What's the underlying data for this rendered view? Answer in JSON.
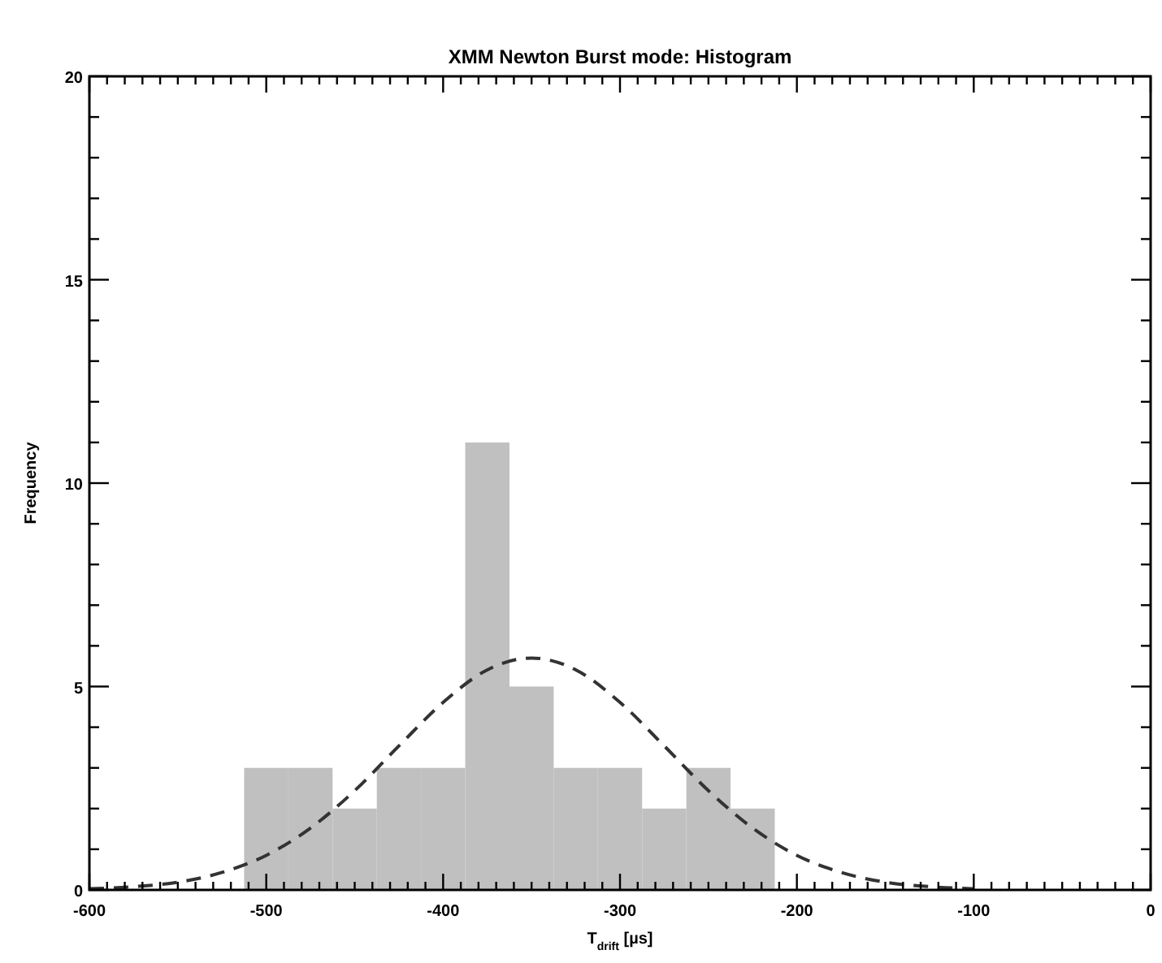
{
  "chart_data": {
    "type": "histogram",
    "title": "XMM Newton Burst mode: Histogram",
    "xlabel": "T$_{drift}$ [µs]",
    "ylabel": "Frequency",
    "xlim": [
      -600,
      0
    ],
    "ylim": [
      0,
      20
    ],
    "xticks": [
      -600,
      {
        "value": -590,
        "label": null
      },
      {
        "value": -580,
        "label": null
      },
      {
        "value": -570,
        "label": null
      },
      {
        "value": -560,
        "label": null
      },
      {
        "value": -550,
        "label": null
      },
      {
        "value": -540,
        "label": null
      },
      {
        "value": -530,
        "label": null
      },
      {
        "value": -520,
        "label": null
      },
      {
        "value": -510,
        "label": null
      },
      -500,
      {
        "value": -490,
        "label": null
      },
      {
        "value": -480,
        "label": null
      },
      {
        "value": -470,
        "label": null
      },
      {
        "value": -460,
        "label": null
      },
      {
        "value": -450,
        "label": null
      },
      {
        "value": -440,
        "label": null
      },
      {
        "value": -430,
        "label": null
      },
      {
        "value": -420,
        "label": null
      },
      {
        "value": -410,
        "label": null
      },
      -400,
      {
        "value": -390,
        "label": null
      },
      {
        "value": -380,
        "label": null
      },
      {
        "value": -370,
        "label": null
      },
      {
        "value": -360,
        "label": null
      },
      {
        "value": -350,
        "label": null
      },
      {
        "value": -340,
        "label": null
      },
      {
        "value": -330,
        "label": null
      },
      {
        "value": -320,
        "label": null
      },
      {
        "value": -310,
        "label": null
      },
      -300,
      {
        "value": -290,
        "label": null
      },
      {
        "value": -280,
        "label": null
      },
      {
        "value": -270,
        "label": null
      },
      {
        "value": -260,
        "label": null
      },
      {
        "value": -250,
        "label": null
      },
      {
        "value": -240,
        "label": null
      },
      {
        "value": -230,
        "label": null
      },
      {
        "value": -220,
        "label": null
      },
      {
        "value": -210,
        "label": null
      },
      -200,
      {
        "value": -190,
        "label": null
      },
      {
        "value": -180,
        "label": null
      },
      {
        "value": -170,
        "label": null
      },
      {
        "value": -160,
        "label": null
      },
      {
        "value": -150,
        "label": null
      },
      {
        "value": -140,
        "label": null
      },
      {
        "value": -130,
        "label": null
      },
      {
        "value": -120,
        "label": null
      },
      {
        "value": -110,
        "label": null
      },
      -100,
      {
        "value": -90,
        "label": null
      },
      {
        "value": -80,
        "label": null
      },
      {
        "value": -70,
        "label": null
      },
      {
        "value": -60,
        "label": null
      },
      {
        "value": -50,
        "label": null
      },
      {
        "value": -40,
        "label": null
      },
      {
        "value": -30,
        "label": null
      },
      {
        "value": -20,
        "label": null
      },
      {
        "value": -10,
        "label": null
      },
      0
    ],
    "yticks": [
      0,
      {
        "value": 1,
        "label": null
      },
      {
        "value": 2,
        "label": null
      },
      {
        "value": 3,
        "label": null
      },
      {
        "value": 4,
        "label": null
      },
      5,
      {
        "value": 6,
        "label": null
      },
      {
        "value": 7,
        "label": null
      },
      {
        "value": 8,
        "label": null
      },
      {
        "value": 9,
        "label": null
      },
      10,
      {
        "value": 11,
        "label": null
      },
      {
        "value": 12,
        "label": null
      },
      {
        "value": 13,
        "label": null
      },
      {
        "value": 14,
        "label": null
      },
      15,
      {
        "value": 16,
        "label": null
      },
      {
        "value": 17,
        "label": null
      },
      {
        "value": 18,
        "label": null
      },
      {
        "value": 19,
        "label": null
      },
      20
    ],
    "series": [
      {
        "color": "#c0c0c0",
        "bins": [
          -512.5,
          -487.5,
          -462.5,
          -437.5,
          -412.5,
          -387.5,
          -362.5,
          -337.5,
          -312.5,
          -287.5,
          -262.5,
          -237.5,
          -212.5
        ],
        "values": [
          3,
          3,
          2,
          3,
          3,
          11,
          5,
          3,
          3,
          2,
          3,
          2
        ]
      },
      {
        "type": "line",
        "color": "#333333",
        "line_style": "dashed",
        "x": [
          -600,
          -575,
          -550,
          -525,
          -500,
          -475,
          -450,
          -425,
          -400,
          -375,
          -350,
          -325,
          -300,
          -275,
          -250,
          -225,
          -200,
          -175,
          -150,
          -125,
          -100
        ],
        "values": [
          0.03,
          0.08,
          0.19,
          0.43,
          0.85,
          1.52,
          2.44,
          3.54,
          4.61,
          5.41,
          5.7,
          5.41,
          4.61,
          3.54,
          2.44,
          1.52,
          0.85,
          0.43,
          0.19,
          0.08,
          0.03
        ]
      }
    ]
  }
}
